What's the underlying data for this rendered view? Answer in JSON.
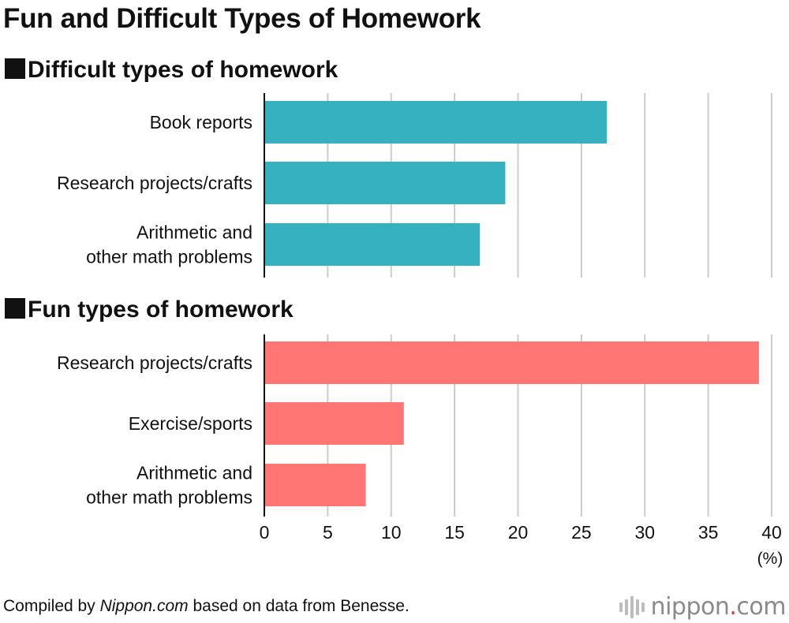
{
  "title": "Fun and Difficult Types of Homework",
  "source": {
    "prefix": "Compiled by ",
    "site": "Nippon.com",
    "suffix": " based on data from Benesse."
  },
  "logo": {
    "name": "nippon",
    "dot": ".",
    "tld": "com"
  },
  "colors": {
    "difficult": "#36b1bf",
    "fun": "#ff7675",
    "grid": "#cccccc",
    "axis": "#111111"
  },
  "chart_data": [
    {
      "type": "bar",
      "orientation": "horizontal",
      "title": "Difficult types of homework",
      "categories": [
        "Book reports",
        "Research projects/crafts",
        "Arithmetic and\nother math problems"
      ],
      "values": [
        27,
        19,
        17
      ],
      "xlim": [
        0,
        40
      ],
      "unit": "(%)",
      "grid": true
    },
    {
      "type": "bar",
      "orientation": "horizontal",
      "title": "Fun types of homework",
      "categories": [
        "Research projects/crafts",
        "Exercise/sports",
        "Arithmetic and\nother math problems"
      ],
      "values": [
        39,
        11,
        8
      ],
      "xlim": [
        0,
        40
      ],
      "xticks": [
        0,
        5,
        10,
        15,
        20,
        25,
        30,
        35,
        40
      ],
      "unit": "(%)",
      "grid": true
    }
  ]
}
